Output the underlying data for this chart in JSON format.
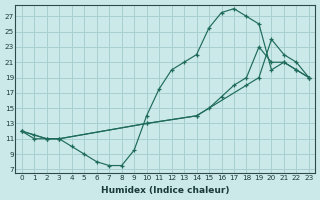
{
  "bg_color": "#cce9e9",
  "grid_color": "#a8d0d0",
  "line_color": "#1e6b5a",
  "xlim": [
    -0.5,
    23.5
  ],
  "ylim": [
    6.5,
    28.5
  ],
  "xticks": [
    0,
    1,
    2,
    3,
    4,
    5,
    6,
    7,
    8,
    9,
    10,
    11,
    12,
    13,
    14,
    15,
    16,
    17,
    18,
    19,
    20,
    21,
    22,
    23
  ],
  "yticks": [
    7,
    9,
    11,
    13,
    15,
    17,
    19,
    21,
    23,
    25,
    27
  ],
  "xlabel": "Humidex (Indice chaleur)",
  "curve1_x": [
    0,
    1,
    2,
    3,
    4,
    5,
    6,
    7,
    8,
    9,
    10,
    11,
    12,
    13,
    14,
    15,
    16,
    17,
    18,
    19,
    20,
    21,
    22,
    23
  ],
  "curve1_y": [
    12,
    11,
    11,
    11,
    10,
    9,
    8,
    7.5,
    7.5,
    9.5,
    14,
    17.5,
    20,
    21,
    22,
    25.5,
    27.5,
    28,
    27,
    26,
    20,
    21,
    20,
    19
  ],
  "curve2_x": [
    0,
    1,
    2,
    3,
    10,
    14,
    15,
    16,
    17,
    18,
    19,
    20,
    21,
    22,
    23
  ],
  "curve2_y": [
    12,
    11.5,
    11,
    11,
    13,
    14,
    15,
    16.5,
    18,
    19,
    23,
    21,
    21,
    20,
    19
  ],
  "curve3_x": [
    0,
    2,
    3,
    10,
    14,
    18,
    19,
    20,
    21,
    22,
    23
  ],
  "curve3_y": [
    12,
    11,
    11,
    13,
    14,
    18,
    19,
    24,
    22,
    21,
    19
  ]
}
